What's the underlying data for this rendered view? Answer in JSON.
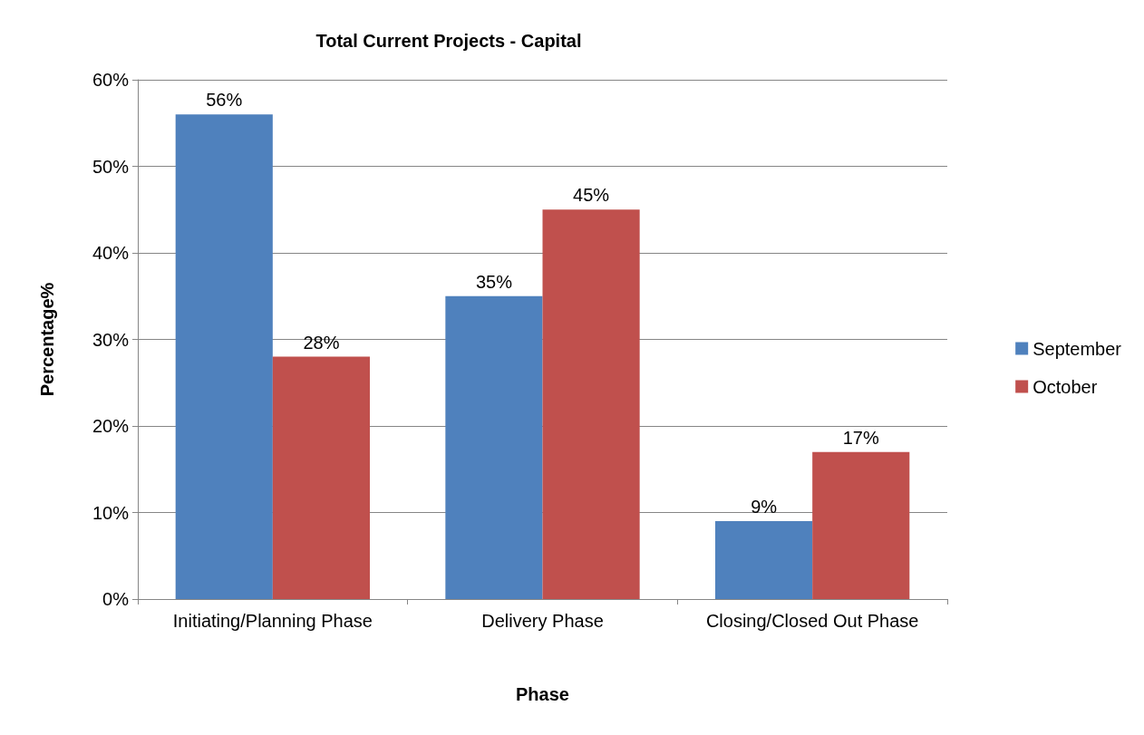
{
  "chart_data": {
    "type": "bar",
    "title": "Total Current Projects - Capital",
    "xlabel": "Phase",
    "ylabel": "Percentage%",
    "categories": [
      "Initiating/Planning Phase",
      "Delivery Phase",
      "Closing/Closed Out Phase"
    ],
    "series": [
      {
        "name": "September",
        "color": "#4f81bd",
        "values": [
          56,
          35,
          9
        ],
        "value_labels": [
          "56%",
          "35%",
          "9%"
        ]
      },
      {
        "name": "October",
        "color": "#c0504d",
        "values": [
          28,
          45,
          17
        ],
        "value_labels": [
          "28%",
          "45%",
          "17%"
        ]
      }
    ],
    "ylim": [
      0,
      60
    ],
    "yticks": [
      {
        "value": 0,
        "label": "0%"
      },
      {
        "value": 10,
        "label": "10%"
      },
      {
        "value": 20,
        "label": "20%"
      },
      {
        "value": 30,
        "label": "30%"
      },
      {
        "value": 40,
        "label": "40%"
      },
      {
        "value": 50,
        "label": "50%"
      },
      {
        "value": 60,
        "label": "60%"
      }
    ],
    "grid": "y",
    "legend": "right"
  }
}
